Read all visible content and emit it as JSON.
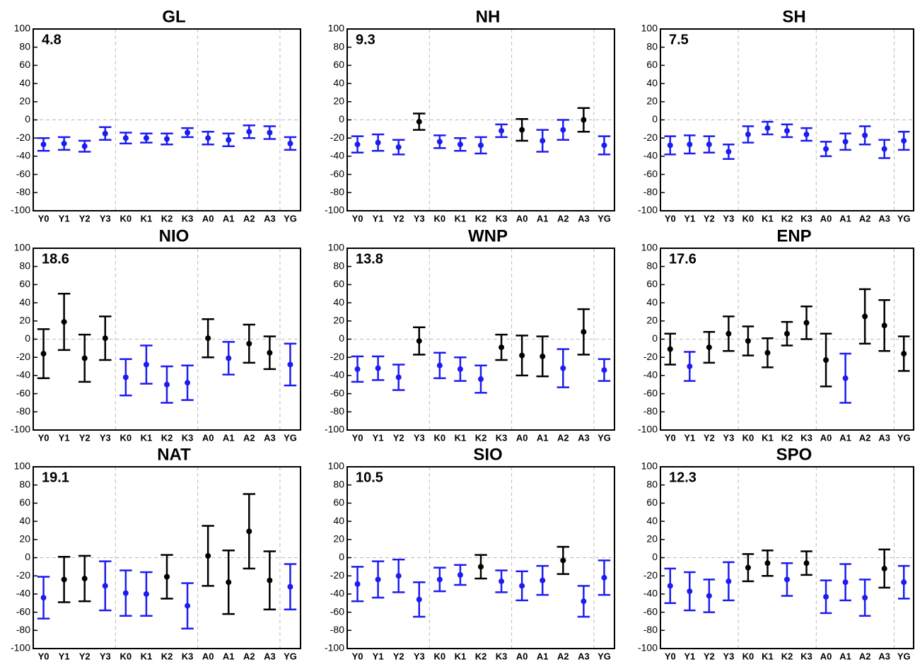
{
  "chart_data": [
    {
      "type": "errorbar",
      "title": "GL",
      "annotation": "4.8",
      "categories": [
        "Y0",
        "Y1",
        "Y2",
        "Y3",
        "K0",
        "K1",
        "K2",
        "K3",
        "A0",
        "A1",
        "A2",
        "A3",
        "YG"
      ],
      "values": [
        -27,
        -26,
        -29,
        -15,
        -20,
        -20,
        -21,
        -14,
        -20,
        -22,
        -13,
        -14,
        -26
      ],
      "errors": [
        7,
        7,
        6,
        7,
        6,
        5,
        6,
        5,
        7,
        7,
        7,
        7,
        7
      ],
      "colors": [
        "#1c1cf0",
        "#1c1cf0",
        "#1c1cf0",
        "#1c1cf0",
        "#1c1cf0",
        "#1c1cf0",
        "#1c1cf0",
        "#1c1cf0",
        "#1c1cf0",
        "#1c1cf0",
        "#1c1cf0",
        "#1c1cf0",
        "#1c1cf0"
      ],
      "ylim": [
        -100,
        100
      ],
      "yticks": [
        -100,
        -80,
        -60,
        -40,
        -20,
        0,
        20,
        40,
        60,
        80,
        100
      ]
    },
    {
      "type": "errorbar",
      "title": "NH",
      "annotation": "9.3",
      "categories": [
        "Y0",
        "Y1",
        "Y2",
        "Y3",
        "K0",
        "K1",
        "K2",
        "K3",
        "A0",
        "A1",
        "A2",
        "A3",
        "YG"
      ],
      "values": [
        -27,
        -25,
        -30,
        -2,
        -24,
        -27,
        -28,
        -12,
        -11,
        -23,
        -11,
        0,
        -28
      ],
      "errors": [
        9,
        9,
        8,
        9,
        7,
        7,
        9,
        7,
        12,
        12,
        11,
        13,
        10
      ],
      "colors": [
        "#1c1cf0",
        "#1c1cf0",
        "#1c1cf0",
        "#000000",
        "#1c1cf0",
        "#1c1cf0",
        "#1c1cf0",
        "#1c1cf0",
        "#000000",
        "#1c1cf0",
        "#1c1cf0",
        "#000000",
        "#1c1cf0"
      ],
      "ylim": [
        -100,
        100
      ],
      "yticks": [
        -100,
        -80,
        -60,
        -40,
        -20,
        0,
        20,
        40,
        60,
        80,
        100
      ]
    },
    {
      "type": "errorbar",
      "title": "SH",
      "annotation": "7.5",
      "categories": [
        "Y0",
        "Y1",
        "Y2",
        "Y3",
        "K0",
        "K1",
        "K2",
        "K3",
        "A0",
        "A1",
        "A2",
        "A3",
        "YG"
      ],
      "values": [
        -28,
        -27,
        -27,
        -35,
        -16,
        -9,
        -12,
        -16,
        -32,
        -24,
        -17,
        -32,
        -23
      ],
      "errors": [
        10,
        10,
        9,
        8,
        9,
        7,
        7,
        7,
        8,
        9,
        10,
        10,
        10
      ],
      "colors": [
        "#1c1cf0",
        "#1c1cf0",
        "#1c1cf0",
        "#1c1cf0",
        "#1c1cf0",
        "#1c1cf0",
        "#1c1cf0",
        "#1c1cf0",
        "#1c1cf0",
        "#1c1cf0",
        "#1c1cf0",
        "#1c1cf0",
        "#1c1cf0"
      ],
      "ylim": [
        -100,
        100
      ],
      "yticks": [
        -100,
        -80,
        -60,
        -40,
        -20,
        0,
        20,
        40,
        60,
        80,
        100
      ]
    },
    {
      "type": "errorbar",
      "title": "NIO",
      "annotation": "18.6",
      "categories": [
        "Y0",
        "Y1",
        "Y2",
        "Y3",
        "K0",
        "K1",
        "K2",
        "K3",
        "A0",
        "A1",
        "A2",
        "A3",
        "YG"
      ],
      "values": [
        -16,
        19,
        -21,
        1,
        -42,
        -28,
        -50,
        -48,
        1,
        -21,
        -5,
        -15,
        -28
      ],
      "errors": [
        27,
        31,
        26,
        24,
        20,
        21,
        20,
        19,
        21,
        18,
        21,
        18,
        23
      ],
      "colors": [
        "#000000",
        "#000000",
        "#000000",
        "#000000",
        "#1c1cf0",
        "#1c1cf0",
        "#1c1cf0",
        "#1c1cf0",
        "#000000",
        "#1c1cf0",
        "#000000",
        "#000000",
        "#1c1cf0"
      ],
      "ylim": [
        -100,
        100
      ],
      "yticks": [
        -100,
        -80,
        -60,
        -40,
        -20,
        0,
        20,
        40,
        60,
        80,
        100
      ]
    },
    {
      "type": "errorbar",
      "title": "WNP",
      "annotation": "13.8",
      "categories": [
        "Y0",
        "Y1",
        "Y2",
        "Y3",
        "K0",
        "K1",
        "K2",
        "K3",
        "A0",
        "A1",
        "A2",
        "A3",
        "YG"
      ],
      "values": [
        -33,
        -32,
        -42,
        -2,
        -29,
        -33,
        -44,
        -9,
        -18,
        -19,
        -32,
        8,
        -34
      ],
      "errors": [
        14,
        13,
        14,
        15,
        14,
        13,
        15,
        14,
        22,
        22,
        21,
        25,
        12
      ],
      "colors": [
        "#1c1cf0",
        "#1c1cf0",
        "#1c1cf0",
        "#000000",
        "#1c1cf0",
        "#1c1cf0",
        "#1c1cf0",
        "#000000",
        "#000000",
        "#000000",
        "#1c1cf0",
        "#000000",
        "#1c1cf0"
      ],
      "ylim": [
        -100,
        100
      ],
      "yticks": [
        -100,
        -80,
        -60,
        -40,
        -20,
        0,
        20,
        40,
        60,
        80,
        100
      ]
    },
    {
      "type": "errorbar",
      "title": "ENP",
      "annotation": "17.6",
      "categories": [
        "Y0",
        "Y1",
        "Y2",
        "Y3",
        "K0",
        "K1",
        "K2",
        "K3",
        "A0",
        "A1",
        "A2",
        "A3",
        "YG"
      ],
      "values": [
        -11,
        -30,
        -9,
        6,
        -2,
        -15,
        6,
        18,
        -23,
        -43,
        25,
        15,
        -16
      ],
      "errors": [
        17,
        16,
        17,
        19,
        16,
        16,
        13,
        18,
        29,
        27,
        30,
        28,
        19
      ],
      "colors": [
        "#000000",
        "#1c1cf0",
        "#000000",
        "#000000",
        "#000000",
        "#000000",
        "#000000",
        "#000000",
        "#000000",
        "#1c1cf0",
        "#000000",
        "#000000",
        "#000000"
      ],
      "ylim": [
        -100,
        100
      ],
      "yticks": [
        -100,
        -80,
        -60,
        -40,
        -20,
        0,
        20,
        40,
        60,
        80,
        100
      ]
    },
    {
      "type": "errorbar",
      "title": "NAT",
      "annotation": "19.1",
      "categories": [
        "Y0",
        "Y1",
        "Y2",
        "Y3",
        "K0",
        "K1",
        "K2",
        "K3",
        "A0",
        "A1",
        "A2",
        "A3",
        "YG"
      ],
      "values": [
        -44,
        -24,
        -23,
        -31,
        -39,
        -40,
        -21,
        -53,
        2,
        -27,
        29,
        -25,
        -32
      ],
      "errors": [
        23,
        25,
        25,
        27,
        25,
        24,
        24,
        25,
        33,
        35,
        41,
        32,
        25
      ],
      "colors": [
        "#1c1cf0",
        "#000000",
        "#000000",
        "#1c1cf0",
        "#1c1cf0",
        "#1c1cf0",
        "#000000",
        "#1c1cf0",
        "#000000",
        "#000000",
        "#000000",
        "#000000",
        "#1c1cf0"
      ],
      "ylim": [
        -100,
        100
      ],
      "yticks": [
        -100,
        -80,
        -60,
        -40,
        -20,
        0,
        20,
        40,
        60,
        80,
        100
      ]
    },
    {
      "type": "errorbar",
      "title": "SIO",
      "annotation": "10.5",
      "categories": [
        "Y0",
        "Y1",
        "Y2",
        "Y3",
        "K0",
        "K1",
        "K2",
        "K3",
        "A0",
        "A1",
        "A2",
        "A3",
        "YG"
      ],
      "values": [
        -29,
        -24,
        -20,
        -46,
        -24,
        -19,
        -10,
        -26,
        -31,
        -25,
        -3,
        -48,
        -22
      ],
      "errors": [
        19,
        20,
        18,
        19,
        13,
        11,
        13,
        12,
        16,
        16,
        15,
        17,
        19
      ],
      "colors": [
        "#1c1cf0",
        "#1c1cf0",
        "#1c1cf0",
        "#1c1cf0",
        "#1c1cf0",
        "#1c1cf0",
        "#000000",
        "#1c1cf0",
        "#1c1cf0",
        "#1c1cf0",
        "#000000",
        "#1c1cf0",
        "#1c1cf0"
      ],
      "ylim": [
        -100,
        100
      ],
      "yticks": [
        -100,
        -80,
        -60,
        -40,
        -20,
        0,
        20,
        40,
        60,
        80,
        100
      ]
    },
    {
      "type": "errorbar",
      "title": "SPO",
      "annotation": "12.3",
      "categories": [
        "Y0",
        "Y1",
        "Y2",
        "Y3",
        "K0",
        "K1",
        "K2",
        "K3",
        "A0",
        "A1",
        "A2",
        "A3",
        "YG"
      ],
      "values": [
        -31,
        -37,
        -42,
        -26,
        -11,
        -6,
        -24,
        -6,
        -43,
        -27,
        -44,
        -12,
        -27
      ],
      "errors": [
        19,
        21,
        18,
        21,
        15,
        14,
        18,
        13,
        18,
        20,
        20,
        21,
        18
      ],
      "colors": [
        "#1c1cf0",
        "#1c1cf0",
        "#1c1cf0",
        "#1c1cf0",
        "#000000",
        "#000000",
        "#1c1cf0",
        "#000000",
        "#1c1cf0",
        "#1c1cf0",
        "#1c1cf0",
        "#000000",
        "#1c1cf0"
      ],
      "ylim": [
        -100,
        100
      ],
      "yticks": [
        -100,
        -80,
        -60,
        -40,
        -20,
        0,
        20,
        40,
        60,
        80,
        100
      ]
    }
  ]
}
